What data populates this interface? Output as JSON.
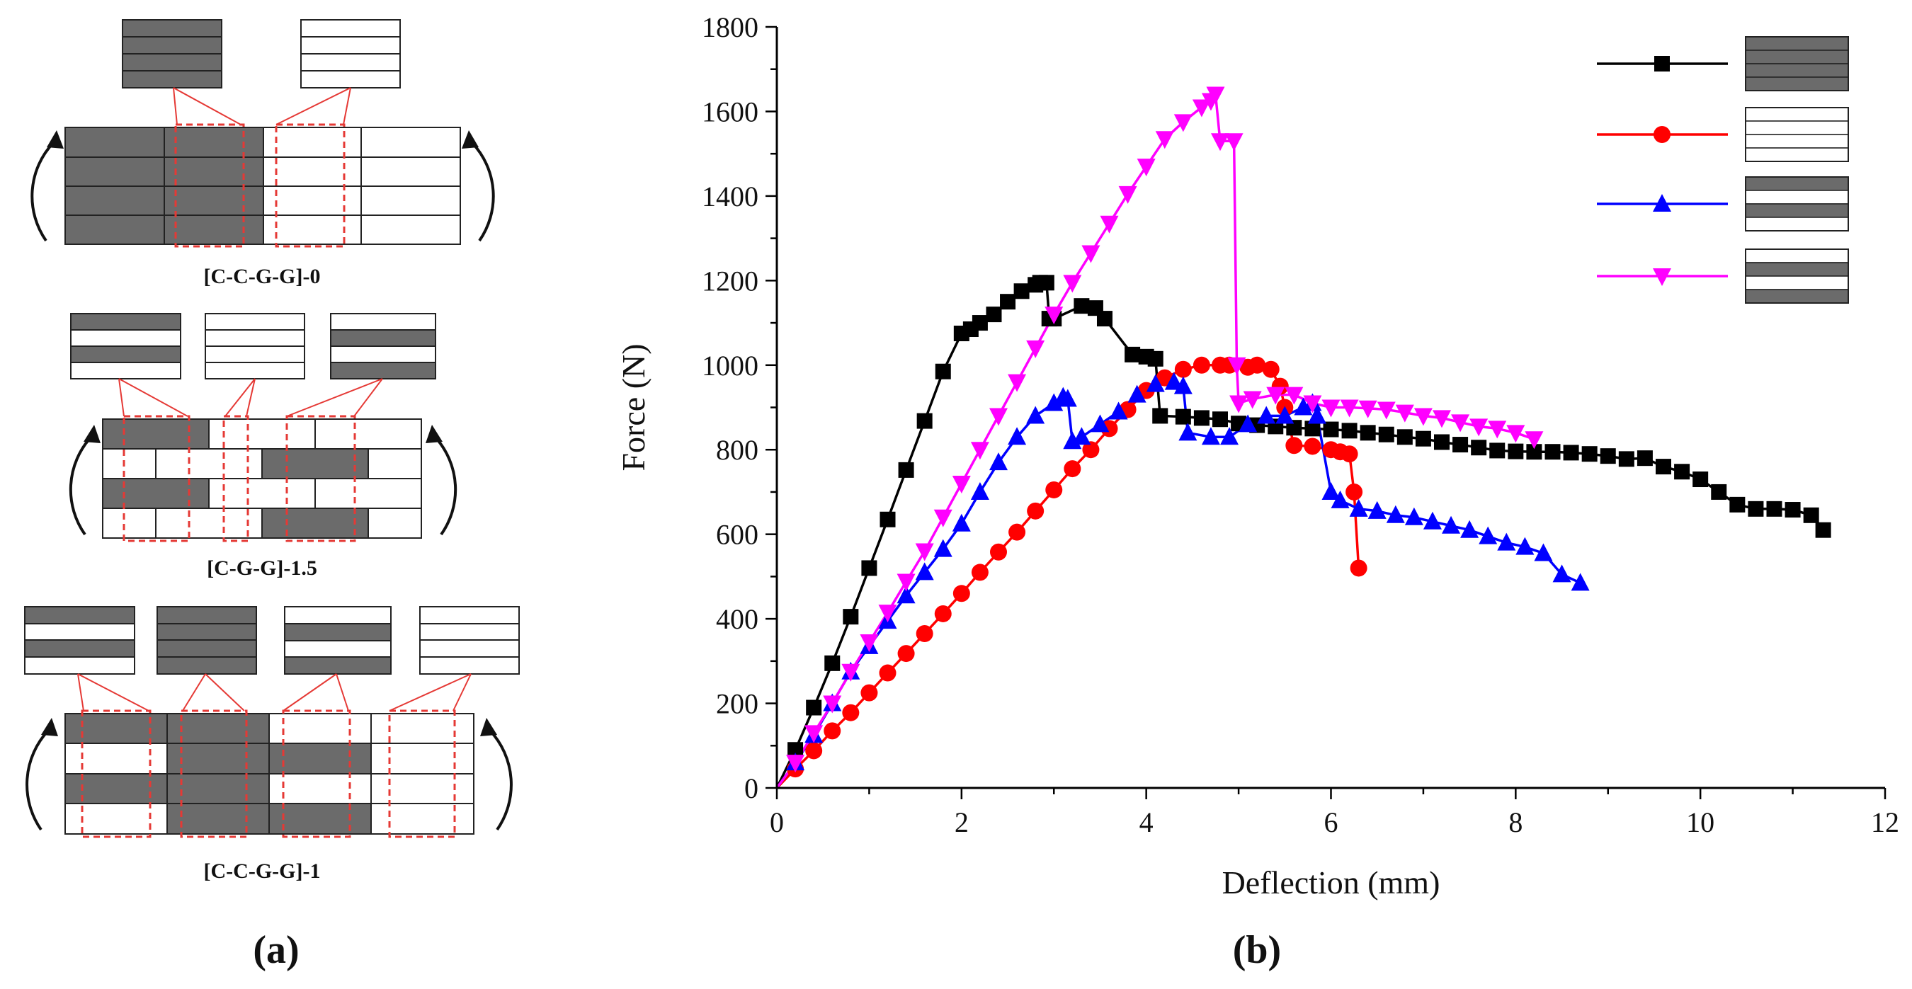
{
  "panel_a": {
    "label": "(a)",
    "colors": {
      "dark": "#6b6b6b",
      "light": "#ffffff",
      "outline": "#222222",
      "highlight": "#e53935",
      "arrow": "#111111"
    },
    "diagrams": [
      {
        "caption": "[C-C-G-G]-0"
      },
      {
        "caption": "[C-G-G]-1.5"
      },
      {
        "caption": "[C-C-G-G]-1"
      }
    ]
  },
  "panel_b": {
    "label": "(b)"
  },
  "chart_data": {
    "type": "line",
    "xlabel": "Deflection (mm)",
    "ylabel": "Force (N)",
    "xlim": [
      0,
      12
    ],
    "ylim": [
      0,
      1800
    ],
    "xticks": [
      0,
      2,
      4,
      6,
      8,
      10,
      12
    ],
    "yticks": [
      0,
      200,
      400,
      600,
      800,
      1000,
      1200,
      1400,
      1600,
      1800
    ],
    "xtick_labels": [
      "0",
      "2",
      "4",
      "6",
      "8",
      "10",
      "12"
    ],
    "ytick_labels": [
      "0",
      "200",
      "400",
      "600",
      "800",
      "1000",
      "1200",
      "1400",
      "1600",
      "1800"
    ],
    "grid": false,
    "legend_position": "top-right",
    "series": [
      {
        "name": "black-square",
        "color": "#000000",
        "marker": "square",
        "legend_swatch": [
          "dark",
          "dark",
          "dark",
          "dark"
        ],
        "x": [
          0,
          0.2,
          0.4,
          0.6,
          0.8,
          1.0,
          1.2,
          1.4,
          1.6,
          1.8,
          2.0,
          2.1,
          2.2,
          2.35,
          2.5,
          2.65,
          2.8,
          2.85,
          2.92,
          2.95,
          3.0,
          3.3,
          3.45,
          3.55,
          3.85,
          4.0,
          4.1,
          4.15,
          4.4,
          4.6,
          4.8,
          5.0,
          5.2,
          5.4,
          5.6,
          5.8,
          6.0,
          6.2,
          6.4,
          6.6,
          6.8,
          7.0,
          7.2,
          7.4,
          7.6,
          7.8,
          8.0,
          8.2,
          8.4,
          8.6,
          8.8,
          9.0,
          9.2,
          9.4,
          9.6,
          9.8,
          10.0,
          10.2,
          10.4,
          10.6,
          10.8,
          11.0,
          11.2,
          11.33
        ],
        "y": [
          0,
          90,
          190,
          295,
          405,
          520,
          635,
          752,
          868,
          985,
          1075,
          1085,
          1100,
          1120,
          1150,
          1175,
          1190,
          1195,
          1195,
          1110,
          1110,
          1140,
          1135,
          1110,
          1025,
          1020,
          1015,
          880,
          878,
          875,
          872,
          862,
          858,
          855,
          852,
          850,
          848,
          845,
          840,
          836,
          830,
          826,
          818,
          812,
          805,
          798,
          796,
          795,
          795,
          793,
          790,
          785,
          778,
          780,
          760,
          748,
          730,
          700,
          670,
          660,
          660,
          658,
          645,
          610
        ]
      },
      {
        "name": "red-circle",
        "color": "#ff0000",
        "marker": "circle",
        "legend_swatch": [
          "light",
          "light",
          "light",
          "light"
        ],
        "x": [
          0,
          0.2,
          0.4,
          0.6,
          0.8,
          1.0,
          1.2,
          1.4,
          1.6,
          1.8,
          2.0,
          2.2,
          2.4,
          2.6,
          2.8,
          3.0,
          3.2,
          3.4,
          3.6,
          3.8,
          4.0,
          4.2,
          4.4,
          4.6,
          4.8,
          4.9,
          5.1,
          5.2,
          5.35,
          5.45,
          5.5,
          5.6,
          5.8,
          6.0,
          6.1,
          6.2,
          6.25,
          6.3
        ],
        "y": [
          0,
          45,
          88,
          135,
          178,
          225,
          272,
          318,
          365,
          412,
          460,
          510,
          558,
          605,
          655,
          705,
          755,
          800,
          850,
          895,
          940,
          970,
          990,
          1000,
          1000,
          1000,
          995,
          1000,
          990,
          950,
          900,
          810,
          808,
          800,
          795,
          790,
          700,
          520
        ]
      },
      {
        "name": "blue-triangle",
        "color": "#0000ff",
        "marker": "triangle-up",
        "legend_swatch": [
          "dark",
          "light",
          "dark",
          "light"
        ],
        "x": [
          0,
          0.2,
          0.4,
          0.6,
          0.8,
          1.0,
          1.2,
          1.4,
          1.6,
          1.8,
          2.0,
          2.2,
          2.4,
          2.6,
          2.8,
          3.0,
          3.1,
          3.15,
          3.2,
          3.3,
          3.5,
          3.7,
          3.9,
          4.1,
          4.3,
          4.4,
          4.45,
          4.7,
          4.9,
          5.1,
          5.3,
          5.5,
          5.7,
          5.8,
          5.85,
          6.0,
          6.1,
          6.3,
          6.5,
          6.7,
          6.9,
          7.1,
          7.3,
          7.5,
          7.7,
          7.9,
          8.1,
          8.3,
          8.5,
          8.7
        ],
        "y": [
          0,
          60,
          125,
          200,
          275,
          335,
          395,
          455,
          510,
          565,
          625,
          700,
          770,
          830,
          880,
          910,
          925,
          920,
          820,
          830,
          860,
          890,
          930,
          955,
          960,
          950,
          840,
          830,
          830,
          860,
          880,
          880,
          900,
          910,
          880,
          700,
          680,
          660,
          655,
          645,
          640,
          630,
          620,
          610,
          595,
          580,
          570,
          555,
          505,
          485
        ]
      },
      {
        "name": "magenta-triangle-down",
        "color": "#ff00ff",
        "marker": "triangle-down",
        "legend_swatch": [
          "light",
          "dark",
          "light",
          "dark"
        ],
        "x": [
          0,
          0.2,
          0.4,
          0.6,
          0.8,
          1.0,
          1.2,
          1.4,
          1.6,
          1.8,
          2.0,
          2.2,
          2.4,
          2.6,
          2.8,
          3.0,
          3.2,
          3.4,
          3.6,
          3.8,
          4.0,
          4.2,
          4.4,
          4.6,
          4.7,
          4.75,
          4.8,
          4.95,
          4.98,
          5.0,
          5.15,
          5.4,
          5.6,
          5.8,
          6.0,
          6.2,
          6.4,
          6.6,
          6.8,
          7.0,
          7.2,
          7.4,
          7.6,
          7.8,
          8.0,
          8.2
        ],
        "y": [
          0,
          60,
          130,
          200,
          275,
          345,
          415,
          488,
          560,
          640,
          720,
          800,
          880,
          960,
          1040,
          1120,
          1195,
          1265,
          1335,
          1405,
          1470,
          1535,
          1575,
          1610,
          1625,
          1640,
          1530,
          1530,
          1000,
          910,
          920,
          930,
          930,
          910,
          900,
          900,
          898,
          895,
          888,
          880,
          875,
          865,
          855,
          850,
          840,
          825
        ]
      }
    ]
  }
}
